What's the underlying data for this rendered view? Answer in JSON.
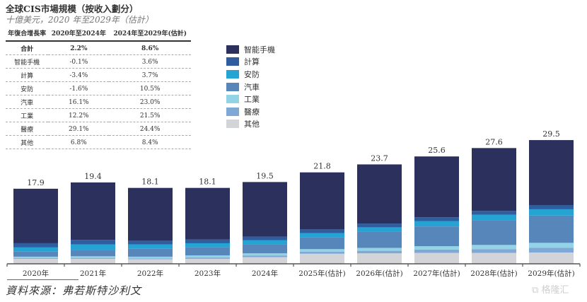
{
  "title": "全球CIS市場規模（按收入劃分）",
  "subtitle": "十億美元，2020 年至2029年（估計）",
  "cagr_table": {
    "headers": [
      "年復合增長率",
      "2020年至2024年",
      "2024年至2029年(估計)"
    ],
    "rows": [
      {
        "label": "合計",
        "v1": "2.2%",
        "v2": "8.6%"
      },
      {
        "label": "智能手機",
        "v1": "-0.1%",
        "v2": "3.6%"
      },
      {
        "label": "計算",
        "v1": "-3.4%",
        "v2": "3.7%"
      },
      {
        "label": "安防",
        "v1": "-1.6%",
        "v2": "10.5%"
      },
      {
        "label": "汽車",
        "v1": "16.1%",
        "v2": "23.0%"
      },
      {
        "label": "工業",
        "v1": "12.2%",
        "v2": "21.5%"
      },
      {
        "label": "醫療",
        "v1": "29.1%",
        "v2": "24.4%"
      },
      {
        "label": "其他",
        "v1": "6.8%",
        "v2": "8.4%"
      }
    ]
  },
  "source": "資料來源：弗若斯特沙利文",
  "watermark": "格隆汇",
  "chart_data": {
    "type": "bar",
    "stacked": true,
    "title": "全球CIS市場規模（按收入劃分）",
    "ylabel": "十億美元",
    "xlabel": "",
    "ylim": [
      0,
      30
    ],
    "grid": false,
    "legend_position": "top-center",
    "categories": [
      "2020年",
      "2021年",
      "2022年",
      "2023年",
      "2024年",
      "2025年(估計)",
      "2026年(估計)",
      "2027年(估計)",
      "2028年(估計)",
      "2029年(估計)"
    ],
    "totals": [
      17.9,
      19.4,
      18.1,
      18.1,
      19.5,
      21.8,
      23.7,
      25.6,
      27.6,
      29.5
    ],
    "series": [
      {
        "name": "其他",
        "color": "#d3d4d8",
        "values": [
          1.2,
          1.2,
          1.1,
          1.2,
          1.6,
          2.4,
          2.5,
          2.6,
          2.6,
          2.7
        ]
      },
      {
        "name": "醫療",
        "color": "#7fa8d6",
        "values": [
          0.2,
          0.2,
          0.2,
          0.3,
          0.4,
          0.5,
          0.6,
          0.8,
          0.9,
          1.1
        ]
      },
      {
        "name": "工業",
        "color": "#93d3e6",
        "values": [
          0.3,
          0.4,
          0.4,
          0.5,
          0.5,
          0.6,
          0.7,
          0.8,
          1.0,
          1.2
        ]
      },
      {
        "name": "汽車",
        "color": "#5786bb",
        "values": [
          1.2,
          1.5,
          1.9,
          2.0,
          2.2,
          2.8,
          3.8,
          4.7,
          5.8,
          6.5
        ]
      },
      {
        "name": "安防",
        "color": "#25a3d3",
        "values": [
          1.0,
          1.3,
          1.0,
          0.9,
          0.9,
          1.0,
          1.1,
          1.3,
          1.4,
          1.5
        ]
      },
      {
        "name": "計算",
        "color": "#2f5d9f",
        "values": [
          1.0,
          1.1,
          0.9,
          0.9,
          0.9,
          0.9,
          0.9,
          0.9,
          0.9,
          1.0
        ]
      },
      {
        "name": "智能手機",
        "color": "#2c305d",
        "values": [
          13.0,
          13.7,
          12.6,
          12.3,
          13.0,
          13.6,
          14.1,
          14.5,
          15.0,
          15.5
        ]
      }
    ],
    "legend_order": [
      "智能手機",
      "計算",
      "安防",
      "汽車",
      "工業",
      "醫療",
      "其他"
    ]
  }
}
